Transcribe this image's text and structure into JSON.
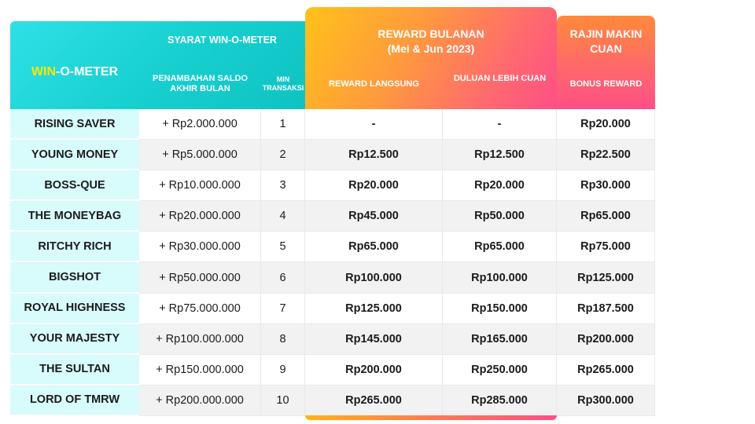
{
  "header": {
    "brand_win": "WIN",
    "brand_rest": "-O-METER",
    "syarat": "SYARAT WIN-O-METER",
    "col_saldo": "PENAMBAHAN SALDO AKHIR BULAN",
    "col_min": "MIN TRANSAKSI",
    "reward_title": "REWARD BULANAN",
    "reward_sub": "(Mei & Jun 2023)",
    "col_langsung": "REWARD LANGSUNG",
    "col_duluan": "DULUAN LEBIH CUAN",
    "rajin_title": "RAJIN MAKIN CUAN",
    "col_bonus": "BONUS REWARD"
  },
  "rows": [
    {
      "name": "RISING SAVER",
      "saldo": "+ Rp2.000.000",
      "min": "1",
      "langsung": "-",
      "duluan": "-",
      "bonus": "Rp20.000"
    },
    {
      "name": "YOUNG MONEY",
      "saldo": "+ Rp5.000.000",
      "min": "2",
      "langsung": "Rp12.500",
      "duluan": "Rp12.500",
      "bonus": "Rp22.500"
    },
    {
      "name": "BOSS-QUE",
      "saldo": "+ Rp10.000.000",
      "min": "3",
      "langsung": "Rp20.000",
      "duluan": "Rp20.000",
      "bonus": "Rp30.000"
    },
    {
      "name": "THE MONEYBAG",
      "saldo": "+ Rp20.000.000",
      "min": "4",
      "langsung": "Rp45.000",
      "duluan": "Rp50.000",
      "bonus": "Rp65.000"
    },
    {
      "name": "RITCHY RICH",
      "saldo": "+ Rp30.000.000",
      "min": "5",
      "langsung": "Rp65.000",
      "duluan": "Rp65.000",
      "bonus": "Rp75.000"
    },
    {
      "name": "BIGSHOT",
      "saldo": "+ Rp50.000.000",
      "min": "6",
      "langsung": "Rp100.000",
      "duluan": "Rp100.000",
      "bonus": "Rp125.000"
    },
    {
      "name": "ROYAL HIGHNESS",
      "saldo": "+ Rp75.000.000",
      "min": "7",
      "langsung": "Rp125.000",
      "duluan": "Rp150.000",
      "bonus": "Rp187.500"
    },
    {
      "name": "YOUR MAJESTY",
      "saldo": "+ Rp100.000.000",
      "min": "8",
      "langsung": "Rp145.000",
      "duluan": "Rp165.000",
      "bonus": "Rp200.000"
    },
    {
      "name": "THE SULTAN",
      "saldo": "+ Rp150.000.000",
      "min": "9",
      "langsung": "Rp200.000",
      "duluan": "Rp250.000",
      "bonus": "Rp265.000"
    },
    {
      "name": "LORD OF TMRW",
      "saldo": "+ Rp200.000.000",
      "min": "10",
      "langsung": "Rp265.000",
      "duluan": "Rp285.000",
      "bonus": "Rp300.000"
    }
  ]
}
